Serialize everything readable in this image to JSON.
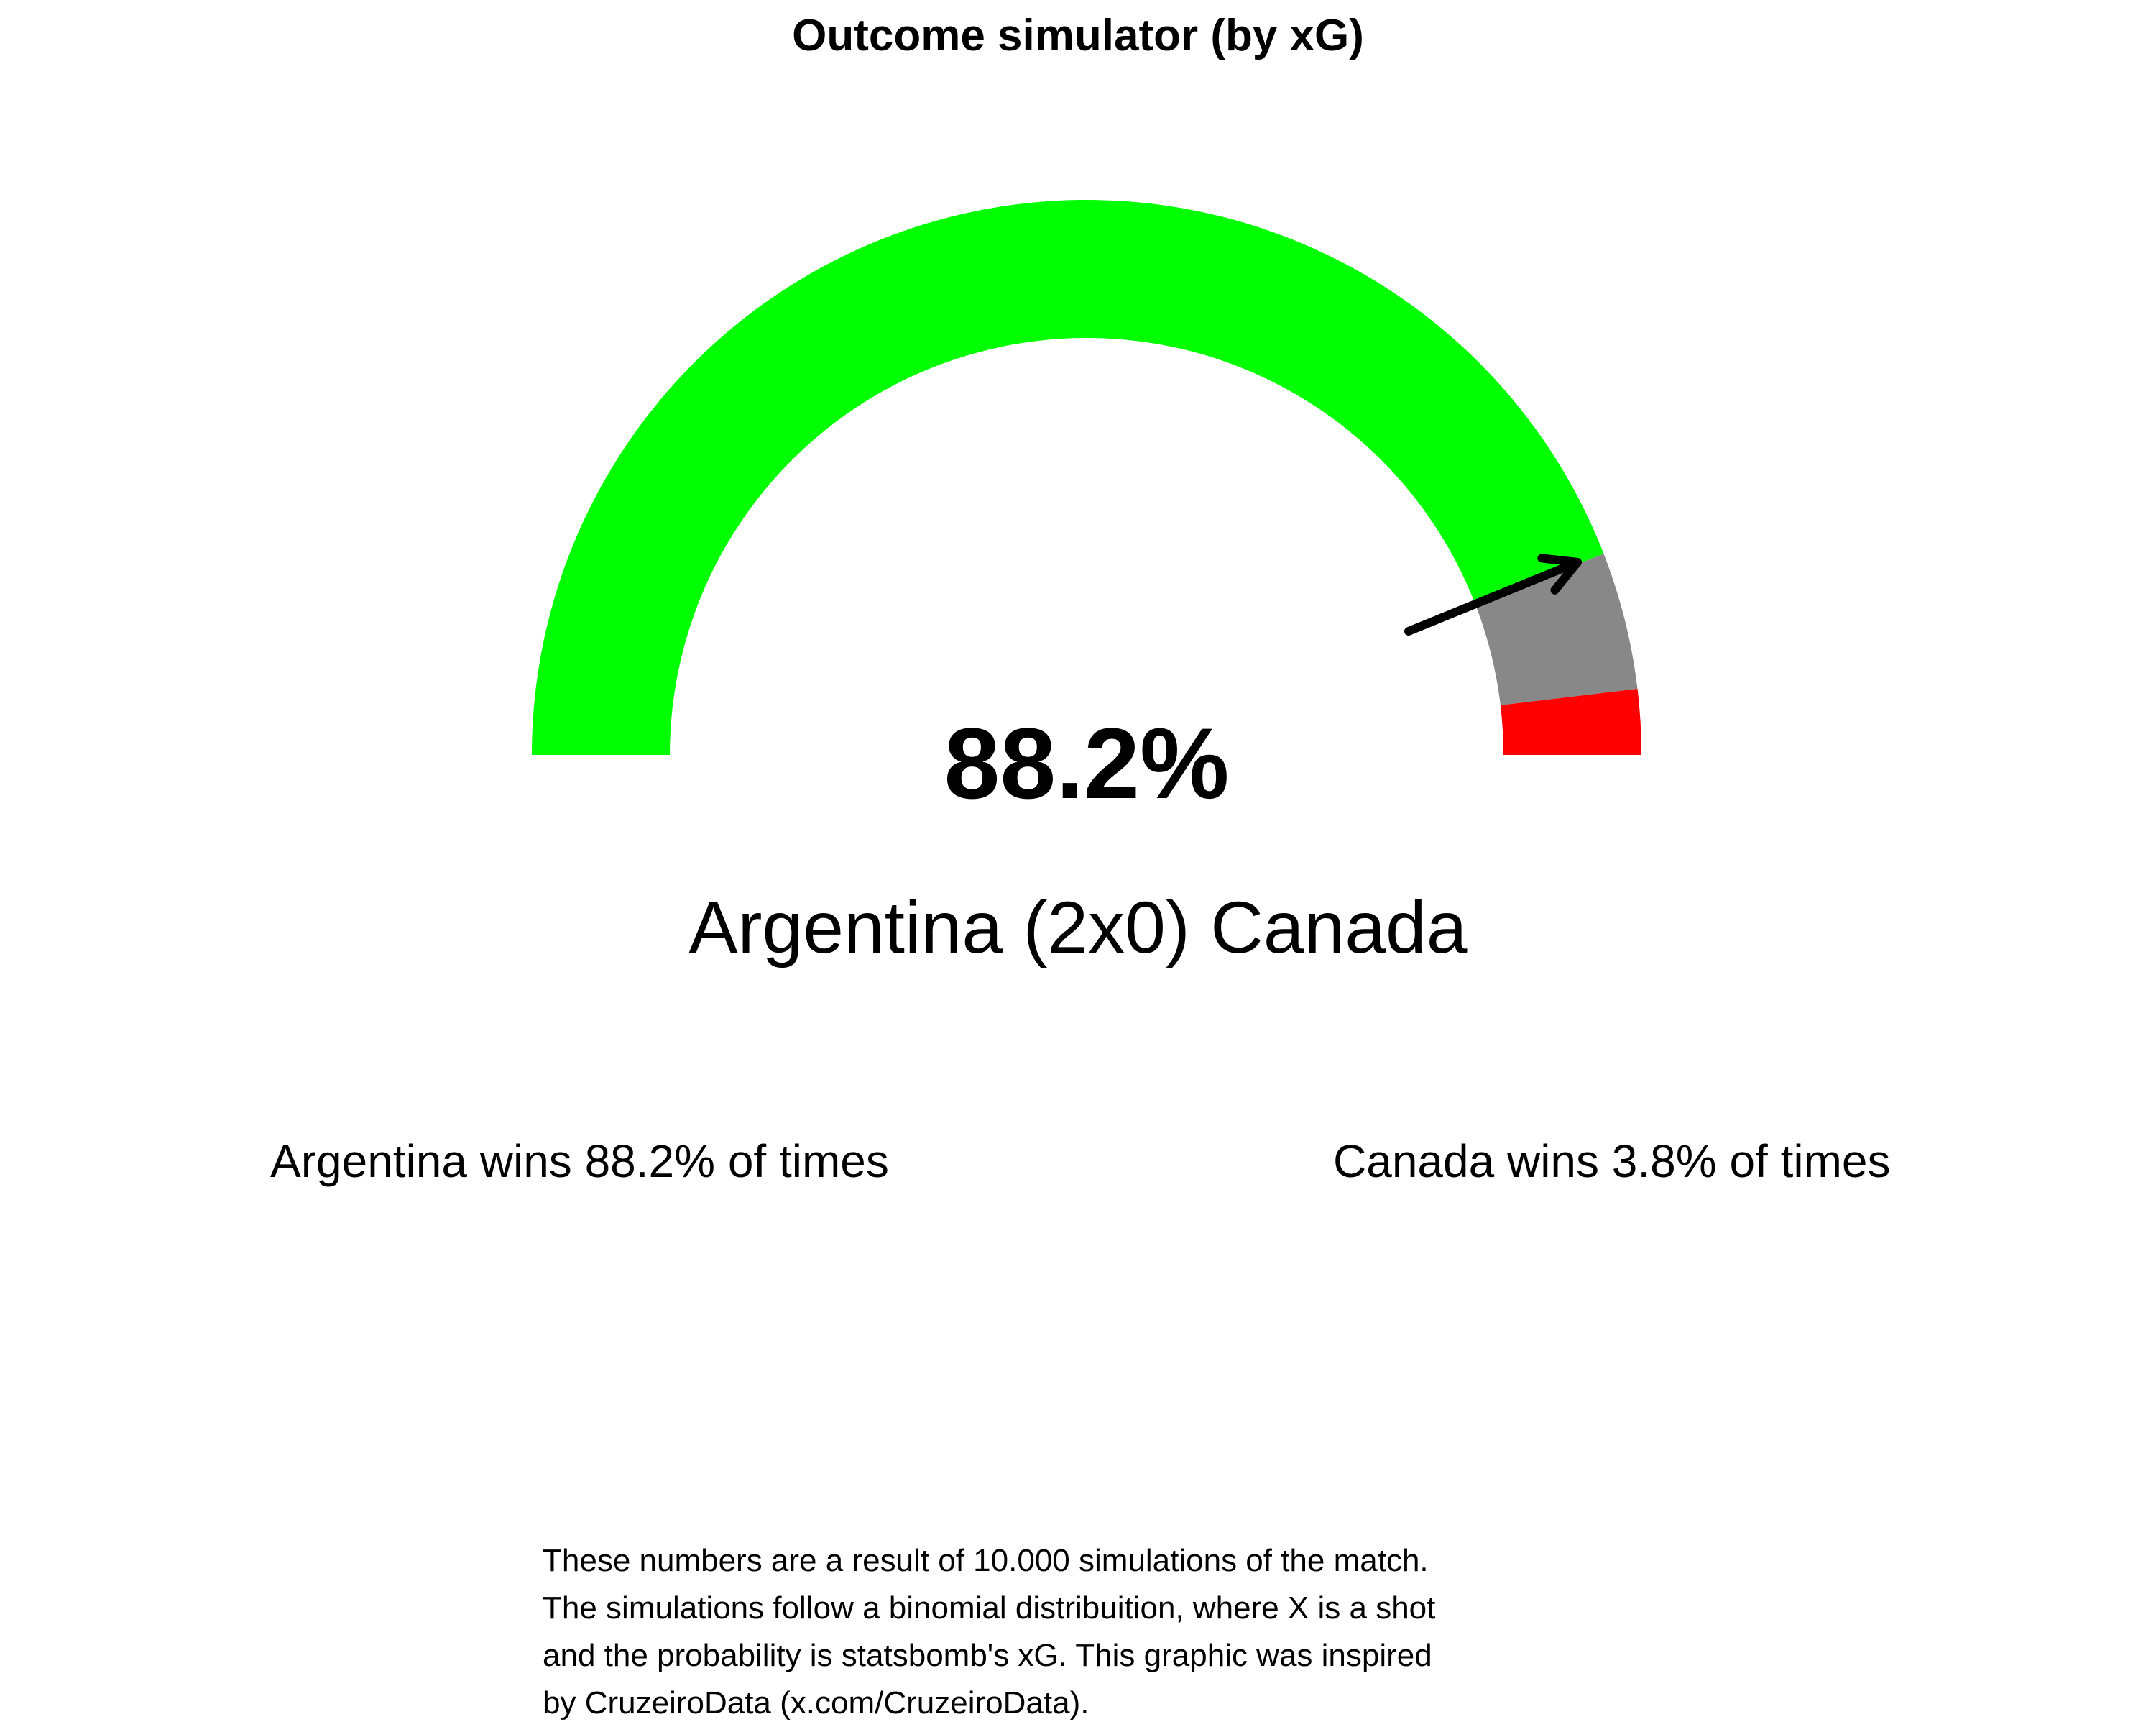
{
  "chart_data": {
    "type": "gauge",
    "title": "Outcome simulator (by xG)",
    "range": [
      0,
      100
    ],
    "segments": [
      {
        "label": "home_win",
        "value": 88.2,
        "color": "#00ff00"
      },
      {
        "label": "draw",
        "value": 8.0,
        "color": "#888888"
      },
      {
        "label": "away_win",
        "value": 3.8,
        "color": "#ff0000"
      }
    ],
    "pointer_value": 88.2,
    "display_value": "88.2%",
    "match_label": "Argentina (2x0) Canada",
    "home_label": "Argentina wins 88.2% of times",
    "away_label": "Canada wins 3.8% of times"
  },
  "footnote": {
    "lines": [
      "These numbers are a result of 10.000 simulations of the match.",
      "The simulations follow a binomial distribuition, where X is a shot",
      "and the probability is statsbomb's xG. This graphic was inspired",
      "by CruzeiroData (x.com/CruzeiroData)."
    ]
  },
  "colors": {
    "pointer": "#000000",
    "background": "#ffffff"
  }
}
